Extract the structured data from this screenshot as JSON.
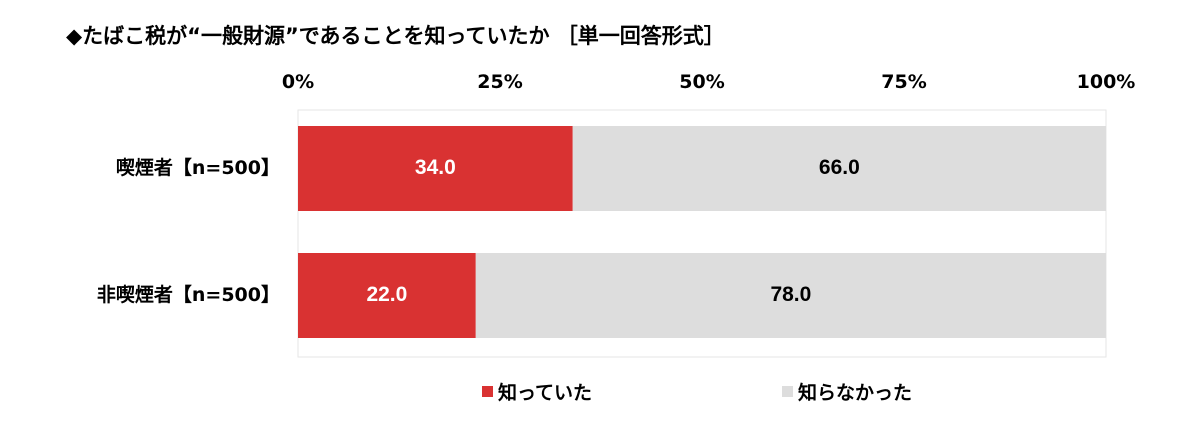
{
  "chart_data": {
    "type": "bar",
    "orientation": "horizontal",
    "stacked": true,
    "title": "◆たばこ税が“一般財源”であることを知っていたか ［単一回答形式］",
    "categories": [
      "喫煙者【n=500】",
      "非喫煙者【n=500】"
    ],
    "series": [
      {
        "name": "知っていた",
        "values": [
          34.0,
          22.0
        ],
        "color": "#d93232",
        "label_color": "#ffffff"
      },
      {
        "name": "知らなかった",
        "values": [
          66.0,
          78.0
        ],
        "color": "#dddddd",
        "label_color": "#000000"
      }
    ],
    "x_ticks": [
      "0%",
      "25%",
      "50%",
      "75%",
      "100%"
    ],
    "xlim": [
      0,
      100
    ],
    "legend_position": "bottom",
    "grid": false
  }
}
